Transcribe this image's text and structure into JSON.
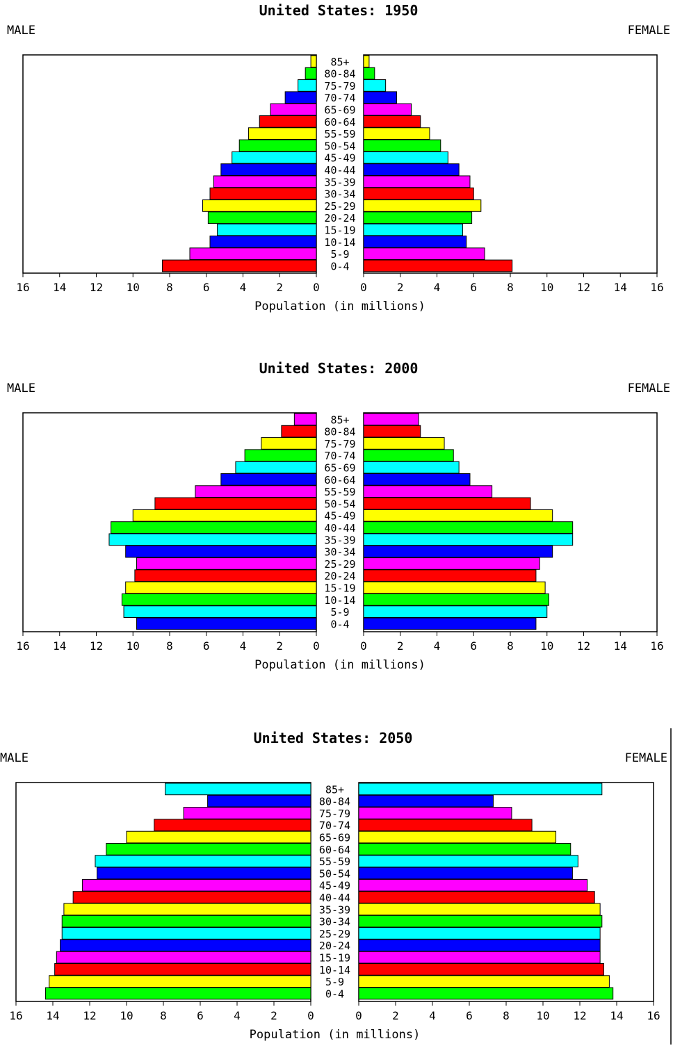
{
  "chart_data": [
    {
      "type": "bar",
      "title": "United States: 1950",
      "left_label": "MALE",
      "right_label": "FEMALE",
      "xlabel": "Population (in millions)",
      "xlim": [
        0,
        16
      ],
      "ticks": [
        16,
        14,
        12,
        10,
        8,
        6,
        4,
        2,
        0
      ],
      "categories": [
        "85+",
        "80-84",
        "75-79",
        "70-74",
        "65-69",
        "60-64",
        "55-59",
        "50-54",
        "45-49",
        "40-44",
        "35-39",
        "30-34",
        "25-29",
        "20-24",
        "15-19",
        "10-14",
        "5-9",
        "0-4"
      ],
      "series": [
        {
          "name": "MALE",
          "values": [
            0.3,
            0.6,
            1.0,
            1.7,
            2.5,
            3.1,
            3.7,
            4.2,
            4.6,
            5.2,
            5.6,
            5.8,
            6.2,
            5.9,
            5.4,
            5.8,
            6.9,
            8.4
          ]
        },
        {
          "name": "FEMALE",
          "values": [
            0.3,
            0.6,
            1.2,
            1.8,
            2.6,
            3.1,
            3.6,
            4.2,
            4.6,
            5.2,
            5.8,
            6.0,
            6.4,
            5.9,
            5.4,
            5.6,
            6.6,
            8.1
          ]
        }
      ]
    },
    {
      "type": "bar",
      "title": "United States: 2000",
      "left_label": "MALE",
      "right_label": "FEMALE",
      "xlabel": "Population (in millions)",
      "xlim": [
        0,
        16
      ],
      "ticks": [
        16,
        14,
        12,
        10,
        8,
        6,
        4,
        2,
        0
      ],
      "categories": [
        "85+",
        "80-84",
        "75-79",
        "70-74",
        "65-69",
        "60-64",
        "55-59",
        "50-54",
        "45-49",
        "40-44",
        "35-39",
        "30-34",
        "25-29",
        "20-24",
        "15-19",
        "10-14",
        "5-9",
        "0-4"
      ],
      "series": [
        {
          "name": "MALE",
          "values": [
            1.2,
            1.9,
            3.0,
            3.9,
            4.4,
            5.2,
            6.6,
            8.8,
            10.0,
            11.2,
            11.3,
            10.4,
            9.8,
            9.9,
            10.4,
            10.6,
            10.5,
            9.8
          ]
        },
        {
          "name": "FEMALE",
          "values": [
            3.0,
            3.1,
            4.4,
            4.9,
            5.2,
            5.8,
            7.0,
            9.1,
            10.3,
            11.4,
            11.4,
            10.3,
            9.6,
            9.4,
            9.9,
            10.1,
            10.0,
            9.4
          ]
        }
      ]
    },
    {
      "type": "bar",
      "title": "United States: 2050",
      "left_label": "MALE",
      "right_label": "FEMALE",
      "xlabel": "Population (in millions)",
      "xlim": [
        0,
        16
      ],
      "ticks": [
        16,
        14,
        12,
        10,
        8,
        6,
        4,
        2,
        0
      ],
      "categories": [
        "85+",
        "80-84",
        "75-79",
        "70-74",
        "65-69",
        "60-64",
        "55-59",
        "50-54",
        "45-49",
        "40-44",
        "35-39",
        "30-34",
        "25-29",
        "20-24",
        "15-19",
        "10-14",
        "5-9",
        "0-4"
      ],
      "series": [
        {
          "name": "MALE",
          "values": [
            7.9,
            5.6,
            6.9,
            8.5,
            10.0,
            11.1,
            11.7,
            11.6,
            12.4,
            12.9,
            13.4,
            13.5,
            13.5,
            13.6,
            13.8,
            13.9,
            14.2,
            14.4
          ]
        },
        {
          "name": "FEMALE",
          "values": [
            13.2,
            7.3,
            8.3,
            9.4,
            10.7,
            11.5,
            11.9,
            11.6,
            12.4,
            12.8,
            13.1,
            13.2,
            13.1,
            13.1,
            13.1,
            13.3,
            13.6,
            13.8
          ]
        }
      ]
    }
  ],
  "colors": {
    "bar_outline": "#000000",
    "frame": "#000000",
    "palettes": {
      "1950": [
        "#ffff00",
        "#00ff00",
        "#00ffff",
        "#0000ff",
        "#ff00ff",
        "#ff0000",
        "#ffff00",
        "#00ff00",
        "#00ffff",
        "#0000ff",
        "#ff00ff",
        "#ff0000",
        "#ffff00",
        "#00ff00",
        "#00ffff",
        "#0000ff",
        "#ff00ff",
        "#ff0000"
      ],
      "2000": [
        "#ff00ff",
        "#ff0000",
        "#ffff00",
        "#00ff00",
        "#00ffff",
        "#0000ff",
        "#ff00ff",
        "#ff0000",
        "#ffff00",
        "#00ff00",
        "#00ffff",
        "#0000ff",
        "#ff00ff",
        "#ff0000",
        "#ffff00",
        "#00ff00",
        "#00ffff",
        "#0000ff"
      ],
      "2050": [
        "#00ffff",
        "#0000ff",
        "#ff00ff",
        "#ff0000",
        "#ffff00",
        "#00ff00",
        "#00ffff",
        "#0000ff",
        "#ff00ff",
        "#ff0000",
        "#ffff00",
        "#00ff00",
        "#00ffff",
        "#0000ff",
        "#ff00ff",
        "#ff0000",
        "#ffff00",
        "#00ff00"
      ]
    }
  }
}
